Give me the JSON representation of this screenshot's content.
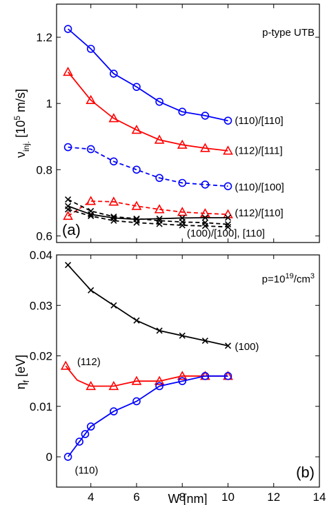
{
  "chart_data": [
    {
      "type": "line",
      "panel_label": "(a)",
      "annotation": "p-type UTB",
      "ylabel": "ν_inj. [10^5 m/s]",
      "ylabel_parts": {
        "main": "ν",
        "sub": "inj.",
        "bracket_open": "[10",
        "sup": "5",
        "bracket_close": " m/s]"
      },
      "xlim": [
        2.5,
        14
      ],
      "ylim": [
        0.58,
        1.3
      ],
      "yticks": [
        0.6,
        0.8,
        1,
        1.2
      ],
      "ytick_labels": [
        "0.6",
        "0.8",
        "1",
        "1.2"
      ],
      "xticks": [
        2,
        4,
        6,
        8,
        10,
        12,
        14
      ],
      "grid": false,
      "x": [
        3,
        4,
        5,
        6,
        7,
        8,
        9,
        10
      ],
      "series": [
        {
          "name": "(110)/[110]",
          "color": "#0000ff",
          "marker": "circle",
          "dash": "solid",
          "values": [
            1.225,
            1.165,
            1.09,
            1.05,
            1.005,
            0.975,
            0.963,
            0.948
          ]
        },
        {
          "name": "(112)/[111]",
          "color": "#ff0000",
          "marker": "triangle",
          "dash": "solid",
          "values": [
            1.095,
            1.01,
            0.955,
            0.92,
            0.89,
            0.875,
            0.865,
            0.857
          ]
        },
        {
          "name": "(110)/[100]",
          "color": "#0000ff",
          "marker": "circle",
          "dash": "dashed",
          "values": [
            0.868,
            0.862,
            0.825,
            0.8,
            0.775,
            0.76,
            0.755,
            0.75
          ]
        },
        {
          "name": "(112)/[110]",
          "color": "#ff0000",
          "marker": "triangle",
          "dash": "dashed",
          "values": [
            0.66,
            0.705,
            0.703,
            0.69,
            0.68,
            0.672,
            0.668,
            0.665
          ]
        },
        {
          "name": "[100] solid",
          "color": "#000000",
          "marker": "x",
          "dash": "solid",
          "values": [
            0.69,
            0.665,
            0.654,
            0.65,
            0.652,
            0.654,
            0.655,
            0.655
          ]
        },
        {
          "name": "[100] dashed A",
          "color": "#000000",
          "marker": "x",
          "dash": "dashed",
          "values": [
            0.71,
            0.675,
            0.658,
            0.652,
            0.646,
            0.642,
            0.64,
            0.635
          ]
        },
        {
          "name": "[100] dashed B",
          "color": "#000000",
          "marker": "x",
          "dash": "dashed",
          "values": [
            0.68,
            0.66,
            0.646,
            0.64,
            0.636,
            0.632,
            0.63,
            0.627
          ]
        }
      ],
      "labels": [
        {
          "text": "(110)/[110]",
          "x": 10.3,
          "y": 0.95
        },
        {
          "text": "(112)/[111]",
          "x": 10.3,
          "y": 0.86
        },
        {
          "text": "(110)/[100]",
          "x": 10.3,
          "y": 0.75
        },
        {
          "text": "(112)/[110]",
          "x": 10.3,
          "y": 0.672
        },
        {
          "text": "(100)/[100], [110]",
          "x": 8.2,
          "y": 0.61
        }
      ]
    },
    {
      "type": "line",
      "panel_label": "(b)",
      "annotation_parts": {
        "pre": "p=10",
        "sup": "19",
        "post": "/cm",
        "sup2": "3"
      },
      "ylabel_parts": {
        "main": "η",
        "sub": "f",
        "bracket": " [eV]"
      },
      "xlabel": "W [nm]",
      "xlim": [
        2.5,
        14
      ],
      "ylim": [
        -0.006,
        0.04
      ],
      "yticks": [
        0,
        0.01,
        0.02,
        0.03,
        0.04
      ],
      "ytick_labels": [
        "0",
        "0.01",
        "0.02",
        "0.03",
        "0.04"
      ],
      "xticks": [
        4,
        6,
        8,
        10,
        12,
        14
      ],
      "xtick_labels": [
        "4",
        "6",
        "8",
        "10",
        "12",
        "14"
      ],
      "grid": false,
      "series": [
        {
          "name": "(100)",
          "color": "#000000",
          "marker": "x",
          "x": [
            3,
            4,
            5,
            6,
            7,
            8,
            9,
            10
          ],
          "values": [
            0.038,
            0.033,
            0.03,
            0.027,
            0.025,
            0.024,
            0.023,
            0.022
          ],
          "line_x": [
            3,
            4,
            5,
            6,
            7,
            8,
            9,
            10
          ],
          "line_y": [
            0.038,
            0.033,
            0.03,
            0.027,
            0.025,
            0.024,
            0.023,
            0.022
          ]
        },
        {
          "name": "(112)",
          "color": "#ff0000",
          "marker": "triangle",
          "x": [
            2.9,
            4,
            5,
            6,
            7,
            8,
            9,
            10
          ],
          "values": [
            0.018,
            0.014,
            0.014,
            0.015,
            0.015,
            0.016,
            0.016,
            0.016
          ],
          "line_x": [
            2.9,
            3.4,
            4,
            5,
            5.5,
            6,
            7,
            8,
            9,
            10
          ],
          "line_y": [
            0.018,
            0.0152,
            0.014,
            0.014,
            0.0145,
            0.015,
            0.015,
            0.016,
            0.016,
            0.016
          ]
        },
        {
          "name": "(110)",
          "color": "#0000ff",
          "marker": "circle",
          "x": [
            3,
            3.5,
            3.75,
            4,
            5,
            6,
            7,
            8,
            9,
            10
          ],
          "values": [
            0.0,
            0.003,
            0.0045,
            0.006,
            0.009,
            0.011,
            0.014,
            0.015,
            0.016,
            0.016
          ],
          "line_x": [
            3,
            3.5,
            3.75,
            4,
            5,
            6,
            7,
            8,
            9,
            10
          ],
          "line_y": [
            0.0,
            0.003,
            0.0045,
            0.006,
            0.009,
            0.011,
            0.014,
            0.015,
            0.016,
            0.016
          ]
        }
      ],
      "labels": [
        {
          "text": "(100)",
          "x": 10.3,
          "y": 0.022
        },
        {
          "text": "(112)",
          "x": 3.4,
          "y": 0.019
        },
        {
          "text": "(110)",
          "x": 3.3,
          "y": -0.0025
        }
      ]
    }
  ]
}
